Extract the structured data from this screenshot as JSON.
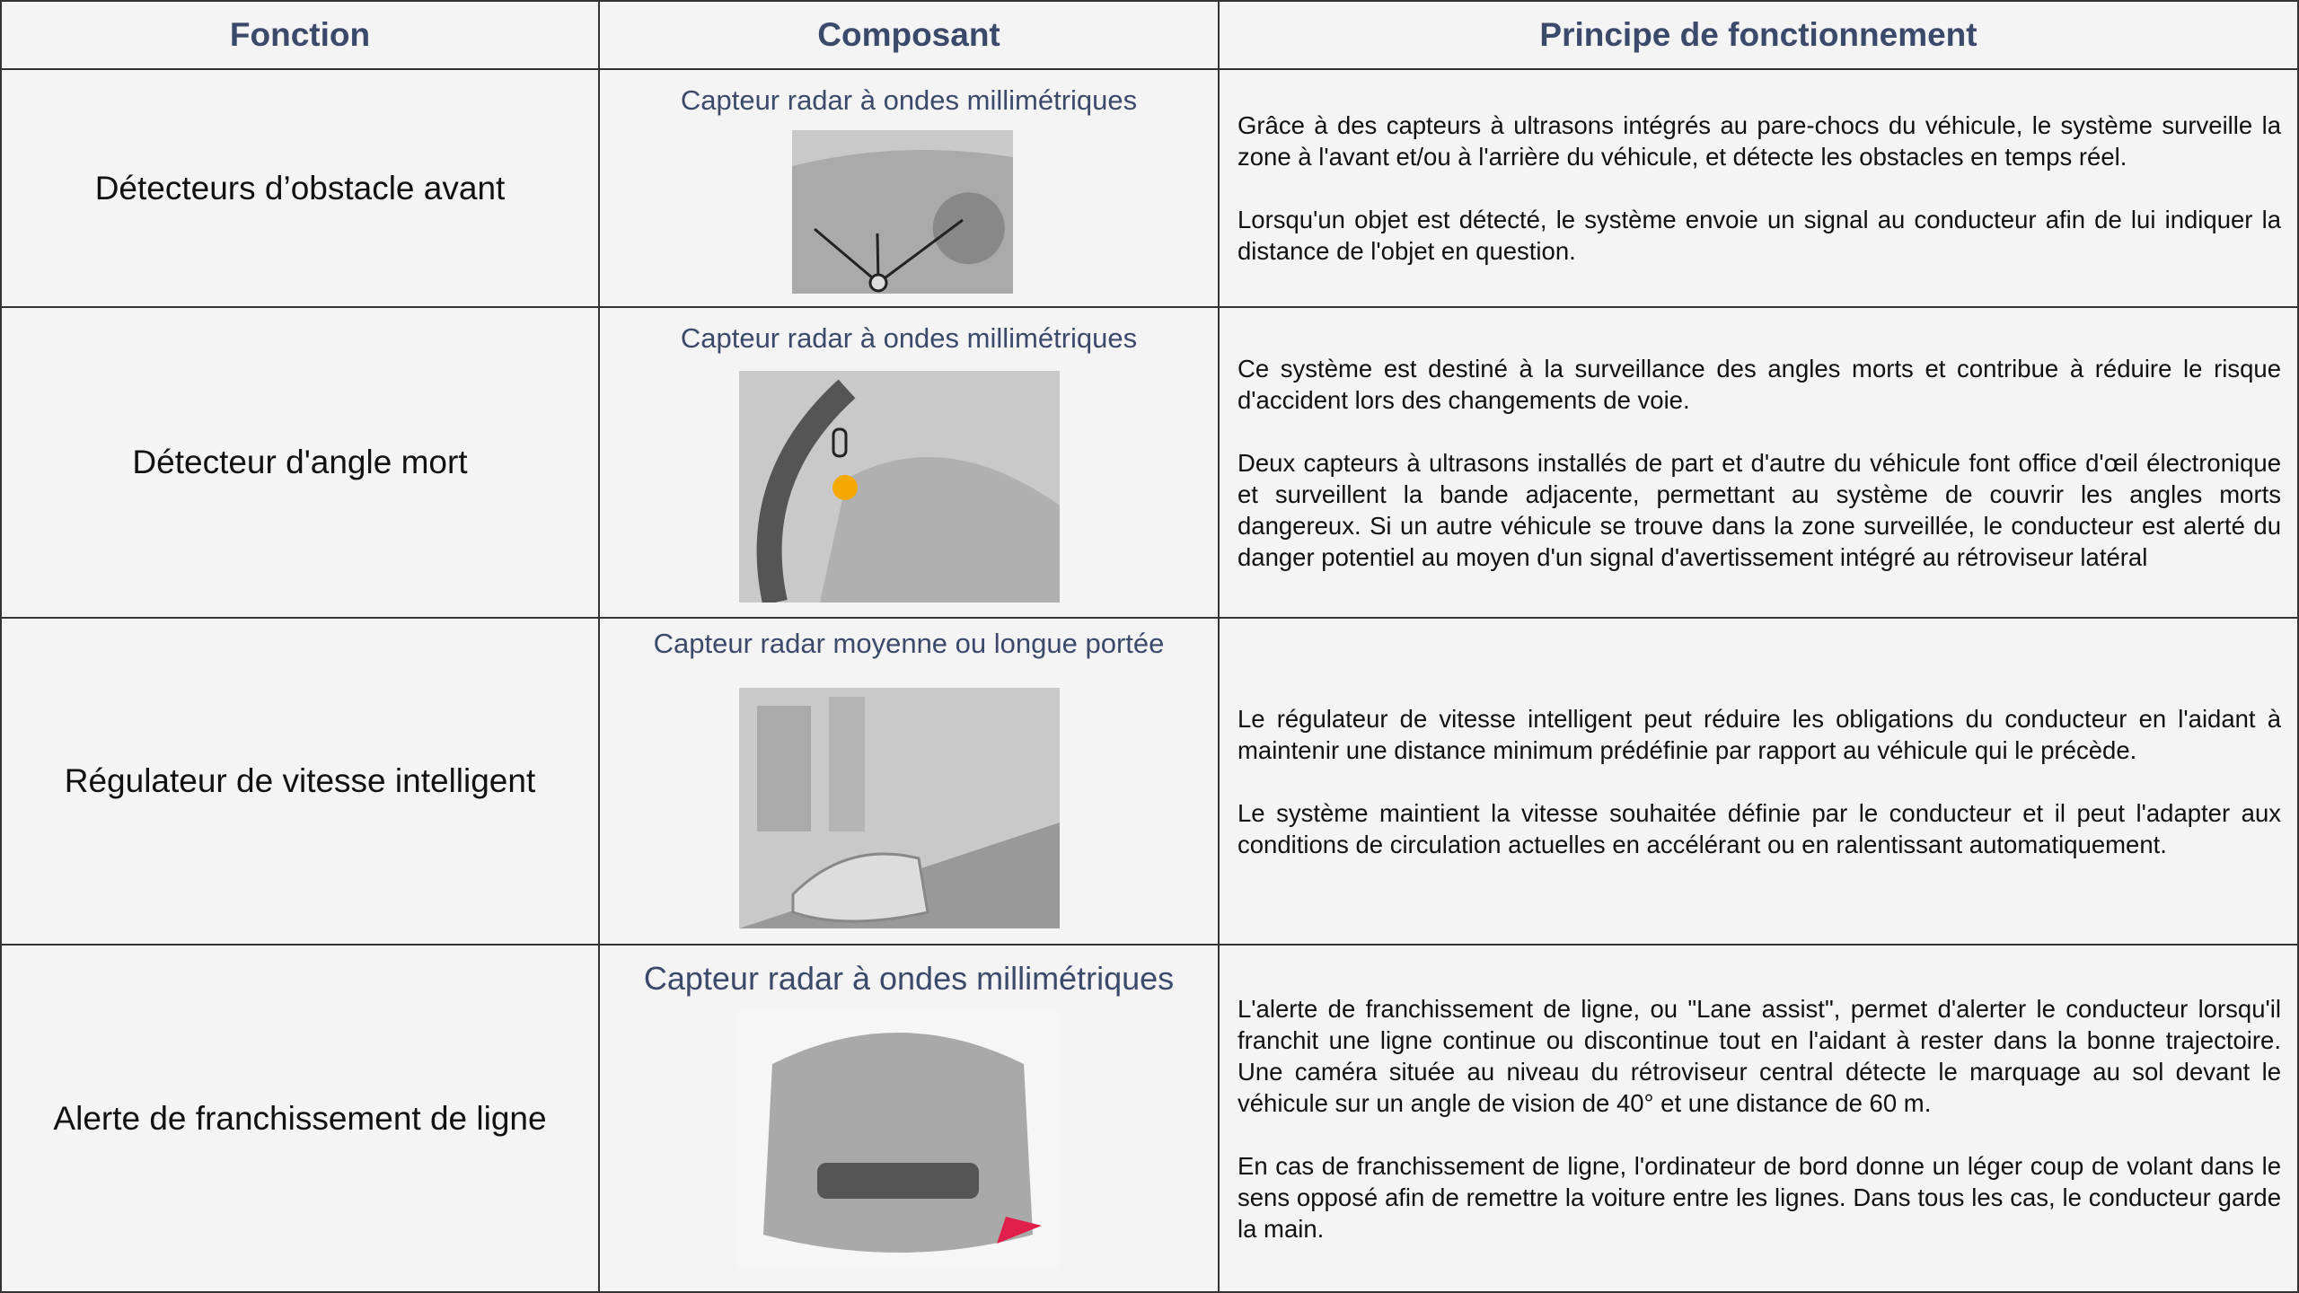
{
  "table": {
    "header": [
      "Fonction",
      "Composant",
      "Principe de fonctionnement"
    ],
    "rows": [
      {
        "function": "Détecteurs d’obstacle avant",
        "component": "Capteur radar à ondes millimétriques",
        "description": [
          "Grâce à des capteurs à ultrasons intégrés au pare-chocs du véhicule, le système surveille la zone à l'avant et/ou à l'arrière du véhicule, et détecte les obstacles en temps réel.",
          "Lorsqu'un objet est détecté, le système envoie un signal au conducteur afin de lui indiquer la distance de l'objet en question."
        ]
      },
      {
        "function": "Détecteur d'angle mort",
        "component": "Capteur radar à ondes millimétriques",
        "description": [
          "Ce système est destiné à la surveillance des angles morts et contribue à réduire le risque d'accident lors des changements de voie.",
          "Deux capteurs à ultrasons installés de part et d'autre du véhicule font office d'œil électronique et surveillent la bande adjacente, permettant au système de couvrir les angles morts dangereux. Si un autre véhicule se trouve dans la zone surveillée, le conducteur est alerté du danger potentiel au moyen d'un signal d'avertissement intégré au rétroviseur latéral"
        ]
      },
      {
        "function": "Régulateur de vitesse intelligent",
        "component": "Capteur radar moyenne ou longue portée",
        "description": [
          "Le régulateur de vitesse intelligent peut réduire les obligations du conducteur en l'aidant à maintenir une distance minimum prédéfinie par rapport au véhicule qui le précède.",
          "Le système maintient la vitesse souhaitée définie par le conducteur et il peut l'adapter aux conditions de circulation actuelles en accélérant ou en ralentissant automatiquement."
        ]
      },
      {
        "function": "Alerte de franchissement de ligne",
        "component": "Capteur radar à ondes millimétriques",
        "description": [
          "L'alerte de franchissement de ligne, ou \"Lane assist\", permet d'alerter le conducteur lorsqu'il franchit une ligne continue ou discontinue tout en l'aidant à rester dans la bonne trajectoire. Une caméra située au niveau du rétroviseur central détecte le marquage au sol devant le véhicule sur un angle de vision de 40° et une distance de 60 m.",
          "En cas de franchissement de ligne, l'ordinateur de bord donne un léger coup de volant dans le sens opposé afin de remettre la voiture entre les lignes. Dans tous les cas, le conducteur garde la main."
        ]
      }
    ]
  }
}
